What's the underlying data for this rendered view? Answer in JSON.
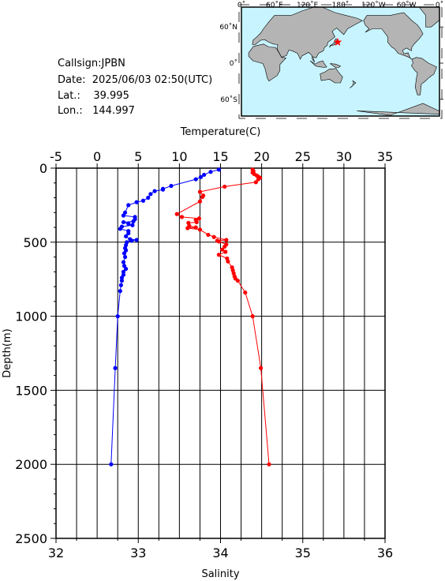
{
  "info": {
    "callsign_label": "Callsign:",
    "callsign": "JPBN",
    "date_label": "Date:",
    "date": "2025/06/03 02:50(UTC)",
    "lat_label": "Lat.:",
    "lat": "39.995",
    "lon_label": "Lon.:",
    "lon": "144.997"
  },
  "map": {
    "lon_ticks": [
      "0˚",
      "60˚E",
      "120˚E",
      "180˚",
      "120˚W",
      "60˚W",
      "0˚"
    ],
    "lat_ticks": [
      "60˚N",
      "0˚",
      "60˚S"
    ],
    "ocean_color": "#c8f4ff",
    "land_color": "#b4b4b4",
    "marker": {
      "lon": 144.997,
      "lat": 39.995,
      "color": "#ff0000",
      "symbol": "star"
    }
  },
  "chart_data": {
    "type": "line",
    "top_axis_label": "Temperature(C)",
    "bottom_axis_label": "Salinity",
    "ylabel": "Depth(m)",
    "temperature_range": [
      -5,
      35
    ],
    "temperature_ticks": [
      "-5",
      "0",
      "5",
      "10",
      "15",
      "20",
      "25",
      "30",
      "35"
    ],
    "salinity_range": [
      32,
      36
    ],
    "salinity_ticks": [
      "32",
      "33",
      "34",
      "35",
      "36"
    ],
    "depth_range": [
      0,
      2500
    ],
    "depth_ticks": [
      "0",
      "500",
      "1000",
      "1500",
      "2000",
      "2500"
    ],
    "grid": true,
    "series": [
      {
        "quantity": "temperature",
        "color": "#ff0000",
        "points": [
          [
            18.9,
            10
          ],
          [
            19.0,
            20
          ],
          [
            18.9,
            30
          ],
          [
            19.1,
            40
          ],
          [
            19.4,
            50
          ],
          [
            19.6,
            58
          ],
          [
            19.8,
            65
          ],
          [
            19.6,
            75
          ],
          [
            19.3,
            95
          ],
          [
            15.5,
            125
          ],
          [
            12.5,
            160
          ],
          [
            12.9,
            185
          ],
          [
            12.8,
            195
          ],
          [
            12.5,
            225
          ],
          [
            9.7,
            310
          ],
          [
            10.3,
            330
          ],
          [
            12.4,
            340
          ],
          [
            12.0,
            350
          ],
          [
            12.1,
            365
          ],
          [
            11.1,
            370
          ],
          [
            11.2,
            390
          ],
          [
            12.0,
            400
          ],
          [
            11.0,
            405
          ],
          [
            12.5,
            415
          ],
          [
            13.5,
            450
          ],
          [
            14.2,
            465
          ],
          [
            15.7,
            485
          ],
          [
            14.6,
            490
          ],
          [
            14.8,
            495
          ],
          [
            15.7,
            515
          ],
          [
            15.5,
            530
          ],
          [
            15.2,
            550
          ],
          [
            15.6,
            565
          ],
          [
            14.8,
            585
          ],
          [
            15.8,
            610
          ],
          [
            15.9,
            630
          ],
          [
            16.4,
            670
          ],
          [
            16.5,
            690
          ],
          [
            16.6,
            710
          ],
          [
            16.7,
            730
          ],
          [
            16.8,
            745
          ],
          [
            17.1,
            760
          ],
          [
            18.0,
            840
          ],
          [
            18.9,
            1000
          ],
          [
            19.9,
            1350
          ],
          [
            20.9,
            2000
          ]
        ]
      },
      {
        "quantity": "salinity",
        "color": "#0000ff",
        "points": [
          [
            33.98,
            10
          ],
          [
            33.88,
            25
          ],
          [
            33.8,
            45
          ],
          [
            33.76,
            60
          ],
          [
            33.7,
            75
          ],
          [
            33.4,
            120
          ],
          [
            33.3,
            140
          ],
          [
            33.3,
            145
          ],
          [
            33.2,
            155
          ],
          [
            33.15,
            175
          ],
          [
            33.12,
            200
          ],
          [
            33.06,
            220
          ],
          [
            32.98,
            230
          ],
          [
            32.88,
            250
          ],
          [
            32.84,
            300
          ],
          [
            32.82,
            320
          ],
          [
            32.96,
            330
          ],
          [
            32.96,
            345
          ],
          [
            32.94,
            360
          ],
          [
            32.82,
            365
          ],
          [
            32.88,
            375
          ],
          [
            32.93,
            385
          ],
          [
            32.8,
            395
          ],
          [
            32.78,
            410
          ],
          [
            32.88,
            425
          ],
          [
            32.88,
            440
          ],
          [
            32.85,
            460
          ],
          [
            32.9,
            480
          ],
          [
            32.98,
            485
          ],
          [
            32.92,
            490
          ],
          [
            32.86,
            500
          ],
          [
            32.85,
            520
          ],
          [
            32.84,
            540
          ],
          [
            32.85,
            555
          ],
          [
            32.83,
            575
          ],
          [
            32.84,
            600
          ],
          [
            32.82,
            635
          ],
          [
            32.83,
            660
          ],
          [
            32.85,
            680
          ],
          [
            32.82,
            700
          ],
          [
            32.82,
            720
          ],
          [
            32.8,
            740
          ],
          [
            32.8,
            760
          ],
          [
            32.79,
            790
          ],
          [
            32.78,
            830
          ],
          [
            32.75,
            1000
          ],
          [
            32.72,
            1350
          ],
          [
            32.67,
            2000
          ]
        ]
      }
    ]
  }
}
